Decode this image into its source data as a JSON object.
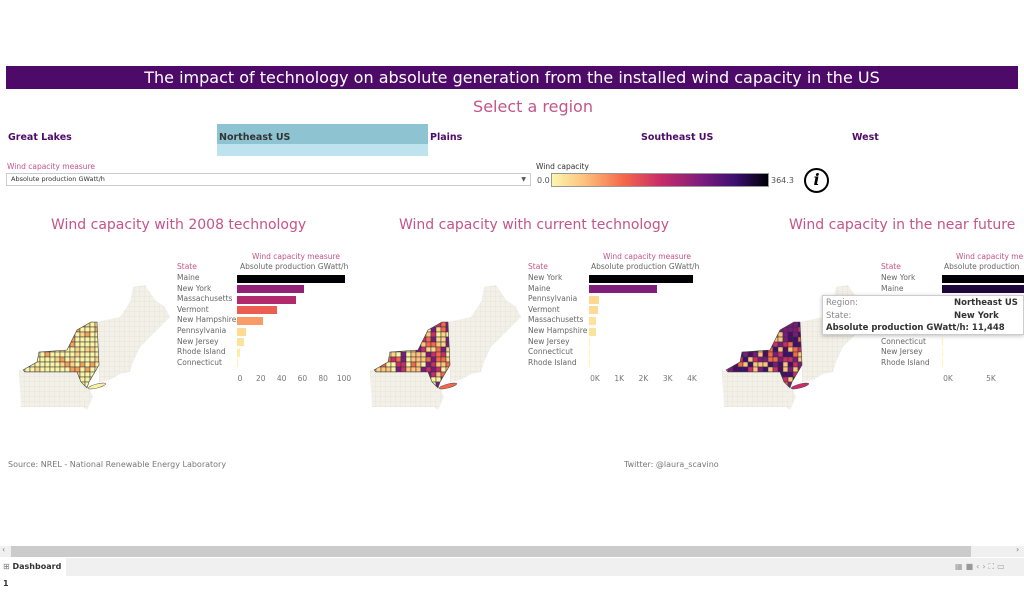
{
  "title": "The impact of technology on absolute generation from the installed wind capacity in the US",
  "region_selector": {
    "title": "Select a region",
    "regions": [
      "Great Lakes",
      "Northeast US",
      "Plains",
      "Southeast US",
      "West"
    ],
    "selected": "Northeast US"
  },
  "measure_filter": {
    "label": "Wind capacity measure",
    "value": "Absolute production GWatt/h"
  },
  "color_legend": {
    "label": "Wind capacity",
    "min": "0.0",
    "max": "364.3",
    "colors": [
      "#fcf7b0",
      "#fdc27c",
      "#f4694a",
      "#c92e68",
      "#7a1b7e",
      "#3b0f70",
      "#000004"
    ]
  },
  "info_icon": "info-circle-icon",
  "charts": [
    {
      "title": "Wind capacity with 2008 technology",
      "measure_header": "Wind capacity measure",
      "measure_sub": "Absolute production GWatt/h",
      "state_header": "State",
      "states": [
        "Maine",
        "New York",
        "Massachusetts",
        "Vermont",
        "New Hampshire",
        "Pennsylvania",
        "New Jersey",
        "Rhode Island",
        "Connecticut"
      ],
      "values": [
        104,
        64,
        57,
        38,
        25,
        9,
        7,
        3,
        0.5
      ],
      "ticks": [
        "0",
        "20",
        "40",
        "60",
        "80",
        "100"
      ],
      "tick_values": [
        0,
        20,
        40,
        60,
        80,
        100
      ],
      "max": 104
    },
    {
      "title": "Wind capacity with current technology",
      "measure_header": "Wind capacity measure",
      "measure_sub": "Absolute production GWatt/h",
      "state_header": "State",
      "states": [
        "New York",
        "Maine",
        "Pennsylvania",
        "Vermont",
        "Massachusetts",
        "New Hampshire",
        "New Jersey",
        "Connecticut",
        "Rhode Island"
      ],
      "values": [
        4300,
        2800,
        420,
        380,
        280,
        270,
        20,
        15,
        10
      ],
      "ticks": [
        "0K",
        "1K",
        "2K",
        "3K",
        "4K"
      ],
      "tick_values": [
        0,
        1000,
        2000,
        3000,
        4000
      ],
      "max": 4300
    },
    {
      "title": "Wind capacity in the near future",
      "measure_header": "Wind capacity me",
      "measure_sub": "Absolute production",
      "state_header": "State",
      "states": [
        "New York",
        "Maine",
        "",
        "",
        "",
        "",
        "Connecticut",
        "New Jersey",
        "Rhode Island"
      ],
      "values": [
        11448,
        10500,
        null,
        null,
        null,
        null,
        60,
        50,
        30
      ],
      "ticks": [
        "0K",
        "5K"
      ],
      "tick_values": [
        0,
        5000
      ],
      "max": 11448
    }
  ],
  "tooltip": {
    "rows": [
      {
        "key": "Region:",
        "value": "Northeast US"
      },
      {
        "key": "State:",
        "value": "New York"
      },
      {
        "key": "Absolute production GWatt/h:",
        "value": "11,448"
      }
    ]
  },
  "footer": {
    "source": "Source: NREL - National Renewable Energy Laboratory",
    "twitter": "Twitter: @laura_scavino"
  },
  "tabs": [
    {
      "label": "Dashboard 1"
    }
  ]
}
